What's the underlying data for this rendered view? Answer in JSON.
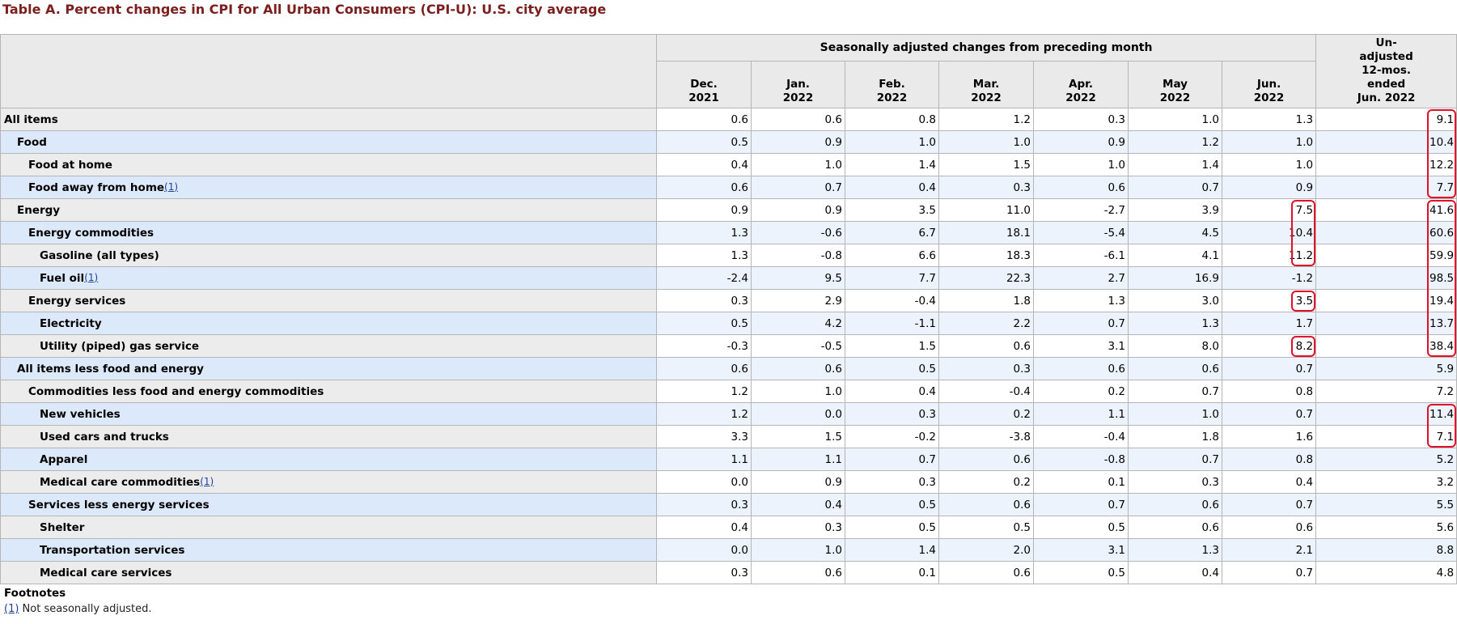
{
  "title": "Table A. Percent changes in CPI for All Urban Consumers (CPI-U): U.S. city average",
  "header": {
    "group_label": "Seasonally adjusted changes from preceding month",
    "months": [
      {
        "line1": "Dec.",
        "line2": "2021"
      },
      {
        "line1": "Jan.",
        "line2": "2022"
      },
      {
        "line1": "Feb.",
        "line2": "2022"
      },
      {
        "line1": "Mar.",
        "line2": "2022"
      },
      {
        "line1": "Apr.",
        "line2": "2022"
      },
      {
        "line1": "May",
        "line2": "2022"
      },
      {
        "line1": "Jun.",
        "line2": "2022"
      }
    ],
    "unadjusted": [
      "Un-",
      "adjusted",
      "12-mos.",
      "ended",
      "Jun. 2022"
    ]
  },
  "rows": [
    {
      "label": "All items",
      "values": [
        "0.6",
        "0.6",
        "0.8",
        "1.2",
        "0.3",
        "1.0",
        "1.3",
        "9.1"
      ]
    },
    {
      "label": "Food",
      "values": [
        "0.5",
        "0.9",
        "1.0",
        "1.0",
        "0.9",
        "1.2",
        "1.0",
        "10.4"
      ]
    },
    {
      "label": "Food at home",
      "values": [
        "0.4",
        "1.0",
        "1.4",
        "1.5",
        "1.0",
        "1.4",
        "1.0",
        "12.2"
      ]
    },
    {
      "label": "Food away from home",
      "footnote": "(1)",
      "values": [
        "0.6",
        "0.7",
        "0.4",
        "0.3",
        "0.6",
        "0.7",
        "0.9",
        "7.7"
      ]
    },
    {
      "label": "Energy",
      "values": [
        "0.9",
        "0.9",
        "3.5",
        "11.0",
        "-2.7",
        "3.9",
        "7.5",
        "41.6"
      ]
    },
    {
      "label": "Energy commodities",
      "values": [
        "1.3",
        "-0.6",
        "6.7",
        "18.1",
        "-5.4",
        "4.5",
        "10.4",
        "60.6"
      ]
    },
    {
      "label": "Gasoline (all types)",
      "values": [
        "1.3",
        "-0.8",
        "6.6",
        "18.3",
        "-6.1",
        "4.1",
        "11.2",
        "59.9"
      ]
    },
    {
      "label": "Fuel oil",
      "footnote": "(1)",
      "values": [
        "-2.4",
        "9.5",
        "7.7",
        "22.3",
        "2.7",
        "16.9",
        "-1.2",
        "98.5"
      ]
    },
    {
      "label": "Energy services",
      "values": [
        "0.3",
        "2.9",
        "-0.4",
        "1.8",
        "1.3",
        "3.0",
        "3.5",
        "19.4"
      ]
    },
    {
      "label": "Electricity",
      "values": [
        "0.5",
        "4.2",
        "-1.1",
        "2.2",
        "0.7",
        "1.3",
        "1.7",
        "13.7"
      ]
    },
    {
      "label": "Utility (piped) gas service",
      "values": [
        "-0.3",
        "-0.5",
        "1.5",
        "0.6",
        "3.1",
        "8.0",
        "8.2",
        "38.4"
      ]
    },
    {
      "label": "All items less food and energy",
      "values": [
        "0.6",
        "0.6",
        "0.5",
        "0.3",
        "0.6",
        "0.6",
        "0.7",
        "5.9"
      ]
    },
    {
      "label": "Commodities less food and energy commodities",
      "values": [
        "1.2",
        "1.0",
        "0.4",
        "-0.4",
        "0.2",
        "0.7",
        "0.8",
        "7.2"
      ]
    },
    {
      "label": "New vehicles",
      "values": [
        "1.2",
        "0.0",
        "0.3",
        "0.2",
        "1.1",
        "1.0",
        "0.7",
        "11.4"
      ]
    },
    {
      "label": "Used cars and trucks",
      "values": [
        "3.3",
        "1.5",
        "-0.2",
        "-3.8",
        "-0.4",
        "1.8",
        "1.6",
        "7.1"
      ]
    },
    {
      "label": "Apparel",
      "values": [
        "1.1",
        "1.1",
        "0.7",
        "0.6",
        "-0.8",
        "0.7",
        "0.8",
        "5.2"
      ]
    },
    {
      "label": "Medical care commodities",
      "footnote": "(1)",
      "values": [
        "0.0",
        "0.9",
        "0.3",
        "0.2",
        "0.1",
        "0.3",
        "0.4",
        "3.2"
      ]
    },
    {
      "label": "Services less energy services",
      "values": [
        "0.3",
        "0.4",
        "0.5",
        "0.6",
        "0.7",
        "0.6",
        "0.7",
        "5.5"
      ]
    },
    {
      "label": "Shelter",
      "values": [
        "0.4",
        "0.3",
        "0.5",
        "0.5",
        "0.5",
        "0.6",
        "0.6",
        "5.6"
      ]
    },
    {
      "label": "Transportation services",
      "values": [
        "0.0",
        "1.0",
        "1.4",
        "2.0",
        "3.1",
        "1.3",
        "2.1",
        "8.8"
      ]
    },
    {
      "label": "Medical care services",
      "values": [
        "0.3",
        "0.6",
        "0.1",
        "0.6",
        "0.5",
        "0.4",
        "0.7",
        "4.8"
      ]
    }
  ],
  "footnotes": {
    "heading": "Footnotes",
    "items": [
      {
        "ref": "(1)",
        "text": " Not seasonally adjusted."
      }
    ]
  },
  "highlight_color": "#e0102a"
}
